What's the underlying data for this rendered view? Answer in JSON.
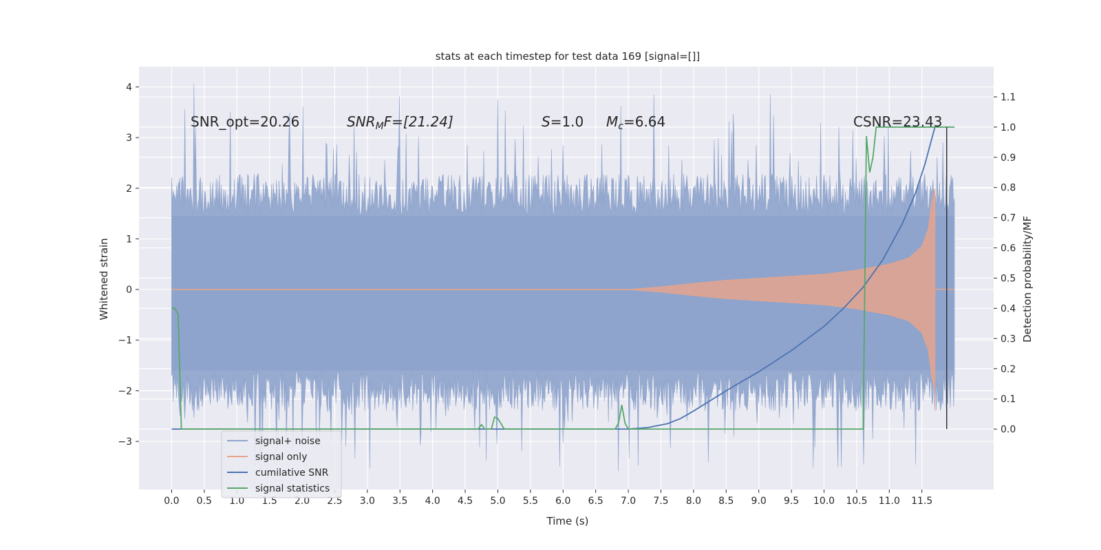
{
  "chart_data": {
    "type": "line",
    "title": "stats at each timestep for test data 169 [signal=[]]",
    "xlabel": "Time (s)",
    "ylabel": "Whitened strain",
    "y2label": "Detection probability/MF",
    "xlim": [
      -0.5,
      12.6
    ],
    "ylim": [
      -3.95,
      4.4
    ],
    "y2lim": [
      -0.2,
      1.2
    ],
    "xticks": [
      0.0,
      0.5,
      1.0,
      1.5,
      2.0,
      2.5,
      3.0,
      3.5,
      4.0,
      4.5,
      5.0,
      5.5,
      6.0,
      6.5,
      7.0,
      7.5,
      8.0,
      8.5,
      9.0,
      9.5,
      10.0,
      10.5,
      11.0,
      11.5
    ],
    "xtick_labels": [
      "0.0",
      "0.5",
      "1.0",
      "1.5",
      "2.0",
      "2.5",
      "3.0",
      "3.5",
      "4.0",
      "4.5",
      "5.0",
      "5.5",
      "6.0",
      "6.5",
      "7.0",
      "7.5",
      "8.0",
      "8.5",
      "9.0",
      "9.5",
      "10.0",
      "10.5",
      "11.0",
      "11.5"
    ],
    "yticks": [
      -3,
      -2,
      -1,
      0,
      1,
      2,
      3,
      4
    ],
    "ytick_labels": [
      "−3",
      "−2",
      "−1",
      "0",
      "1",
      "2",
      "3",
      "4"
    ],
    "y2ticks": [
      0.0,
      0.1,
      0.2,
      0.3,
      0.4,
      0.5,
      0.6,
      0.7,
      0.8,
      0.9,
      1.0,
      1.1
    ],
    "y2tick_labels": [
      "0.0",
      "0.1",
      "0.2",
      "0.3",
      "0.4",
      "0.5",
      "0.6",
      "0.7",
      "0.8",
      "0.9",
      "1.0",
      "1.1"
    ],
    "grid": true,
    "legend_position": "lower-left",
    "annotations": {
      "snr_opt": "SNR_opt=20.26",
      "snr_mf_main": "SNR",
      "snr_mf_sub": "M",
      "snr_mf_rest": "F=[21.24]",
      "s_main": "S",
      "s_rest": "=1.0",
      "mc_main": "M",
      "mc_sub": "c",
      "mc_rest": "=6.64",
      "csnr": "CSNR=23.43"
    },
    "series": [
      {
        "name": "signal+ noise",
        "color": "#8fa4cc",
        "axis": "left",
        "x_range": [
          0.0,
          12.0
        ],
        "envelope_core": [
          -1.6,
          1.45
        ],
        "spike_range": [
          -3.6,
          4.1
        ]
      },
      {
        "name": "signal only",
        "color": "#e8a48a",
        "axis": "left",
        "x": [
          0,
          7.0,
          7.5,
          8.0,
          8.5,
          9.0,
          9.5,
          10.0,
          10.5,
          11.0,
          11.3,
          11.5,
          11.6,
          11.65,
          11.7
        ],
        "amplitude": [
          0,
          0,
          0.05,
          0.12,
          0.18,
          0.22,
          0.26,
          0.3,
          0.38,
          0.5,
          0.62,
          0.85,
          1.2,
          1.7,
          2.0
        ]
      },
      {
        "name": "cumilative SNR",
        "color": "#4c72b0",
        "axis": "right",
        "x": [
          0.0,
          7.0,
          7.3,
          7.6,
          7.8,
          8.0,
          8.3,
          8.6,
          9.0,
          9.5,
          10.0,
          10.3,
          10.6,
          10.9,
          11.2,
          11.4,
          11.55,
          11.65,
          11.7
        ],
        "y": [
          0.0,
          0.0,
          0.005,
          0.018,
          0.035,
          0.06,
          0.1,
          0.14,
          0.19,
          0.26,
          0.34,
          0.4,
          0.47,
          0.56,
          0.68,
          0.78,
          0.88,
          0.96,
          1.0
        ]
      },
      {
        "name": "signal statistics",
        "color": "#55a868",
        "axis": "right",
        "x": [
          0.0,
          0.05,
          0.1,
          0.15,
          5.2,
          4.7,
          4.75,
          4.8,
          4.9,
          4.95,
          5.0,
          5.1,
          6.8,
          6.85,
          6.9,
          6.95,
          7.0,
          10.55,
          10.6,
          10.65,
          10.7,
          10.75,
          10.8,
          10.85,
          12.0
        ],
        "y": [
          0.4,
          0.4,
          0.38,
          0.0,
          0.0,
          0.0,
          0.015,
          0.0,
          0.0,
          0.04,
          0.035,
          0.0,
          0.0,
          0.02,
          0.08,
          0.02,
          0.0,
          0.0,
          0.0,
          0.97,
          0.85,
          0.9,
          1.0,
          1.0,
          1.0
        ]
      }
    ]
  }
}
